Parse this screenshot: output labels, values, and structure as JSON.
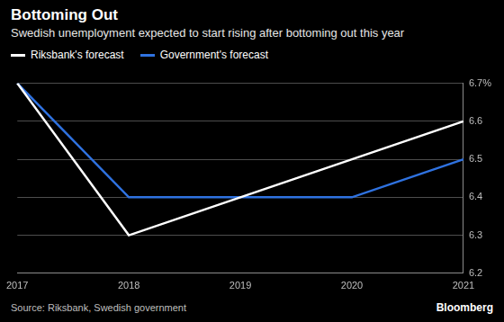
{
  "chart_data": {
    "type": "line",
    "title": "Bottoming Out",
    "subtitle": "Swedish unemployment expected to start rising after bottoming out this year",
    "categories": [
      "2017",
      "2018",
      "2019",
      "2020",
      "2021"
    ],
    "series": [
      {
        "name": "Riksbank's forecast",
        "color": "#ffffff",
        "values": [
          6.7,
          6.3,
          6.4,
          6.5,
          6.6
        ]
      },
      {
        "name": "Government's forecast",
        "color": "#2f72e0",
        "values": [
          6.7,
          6.4,
          6.4,
          6.4,
          6.5
        ]
      }
    ],
    "ylim": [
      6.2,
      6.7
    ],
    "yticks": [
      6.2,
      6.3,
      6.4,
      6.5,
      6.6,
      {
        "value": 6.7,
        "label": "6.7%"
      }
    ],
    "grid": true,
    "legend": "upper left",
    "source": "Source: Riksbank, Swedish government",
    "credit": "Bloomberg"
  }
}
